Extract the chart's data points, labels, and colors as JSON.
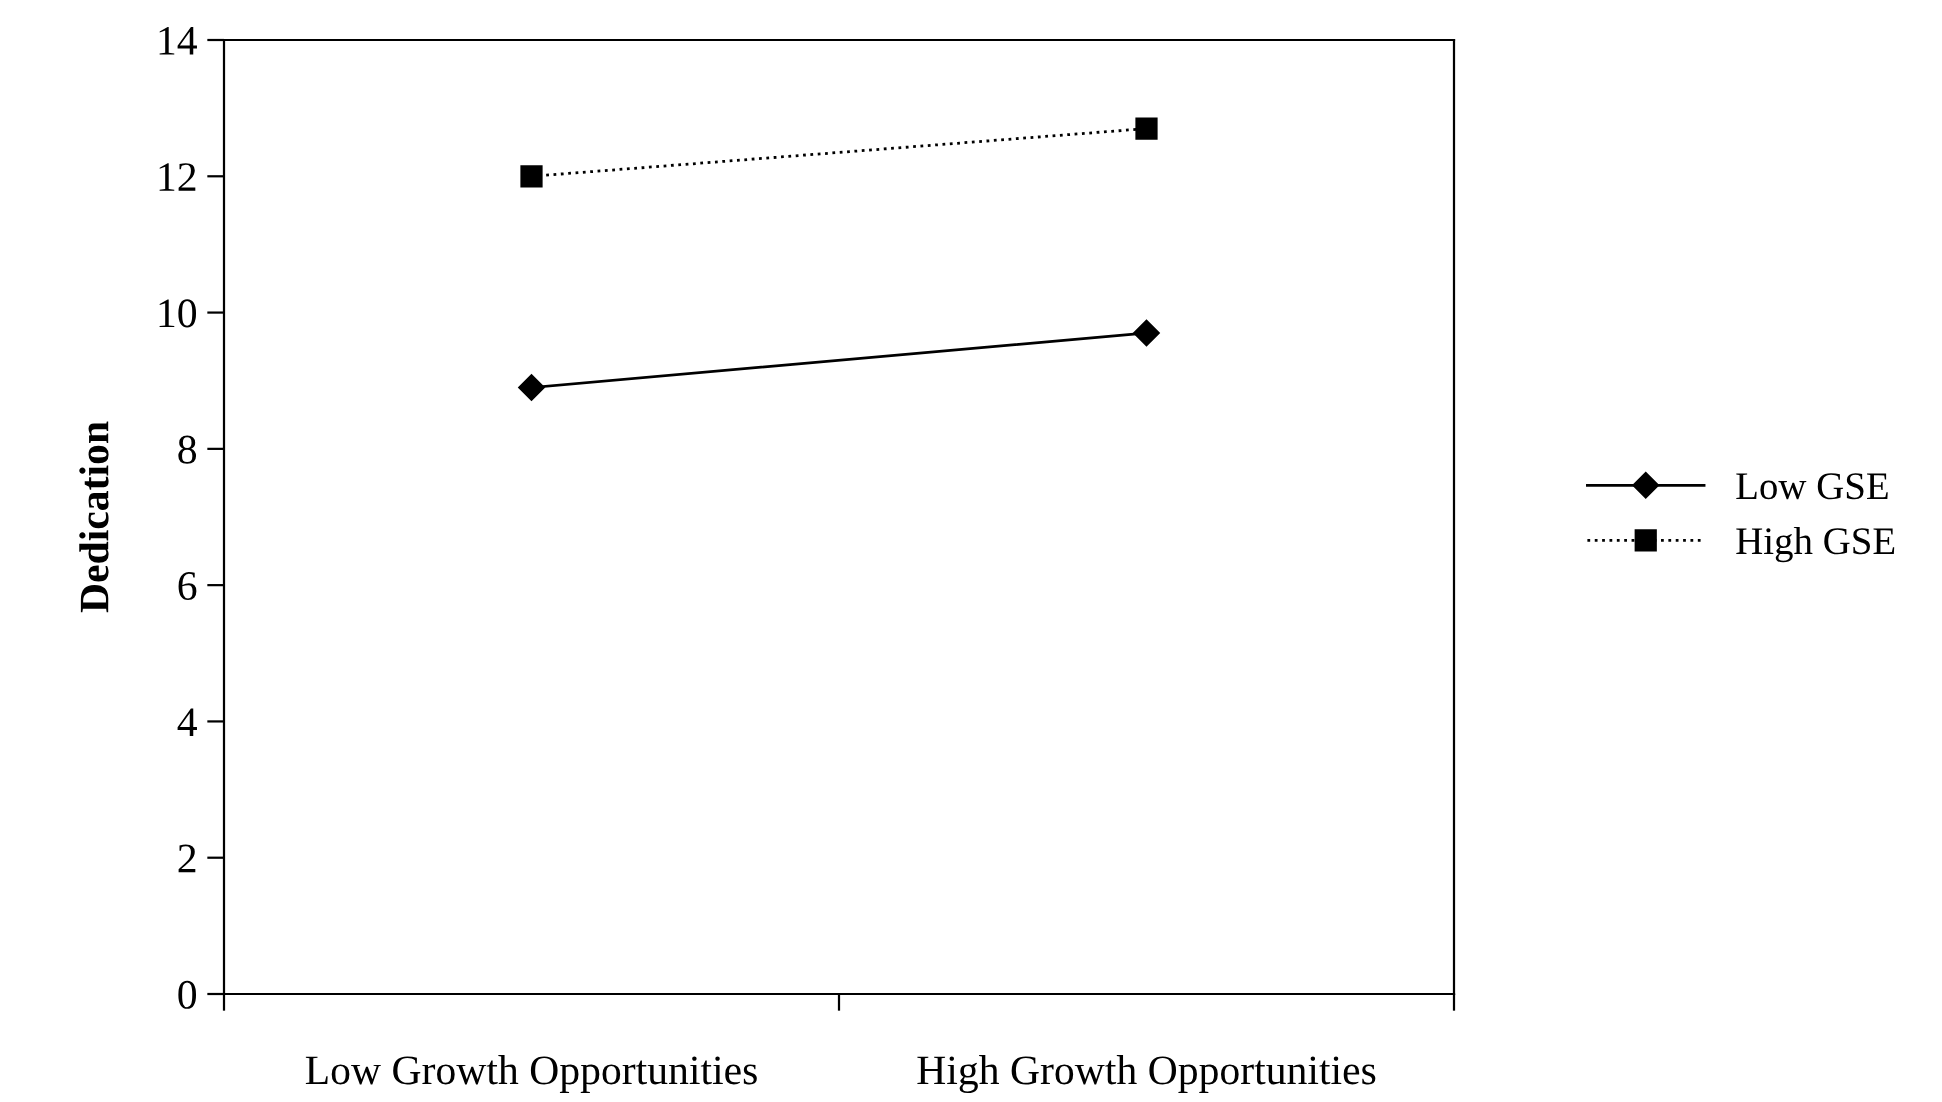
{
  "chart_data": {
    "type": "line",
    "ylabel": "Dedication",
    "categories": [
      "Low Growth Opportunities",
      "High Growth Opportunities"
    ],
    "series": [
      {
        "name": "Low GSE",
        "color": "#000000",
        "values": [
          8.9,
          9.7
        ],
        "marker": "diamond",
        "line_style": "solid"
      },
      {
        "name": "High GSE",
        "color": "#000000",
        "values": [
          12.0,
          12.7
        ],
        "marker": "square",
        "line_style": "dotted"
      }
    ],
    "ylim": [
      0,
      14
    ],
    "yticks": [
      0,
      2,
      4,
      6,
      8,
      10,
      12,
      14
    ],
    "grid": false,
    "legend": "right"
  }
}
